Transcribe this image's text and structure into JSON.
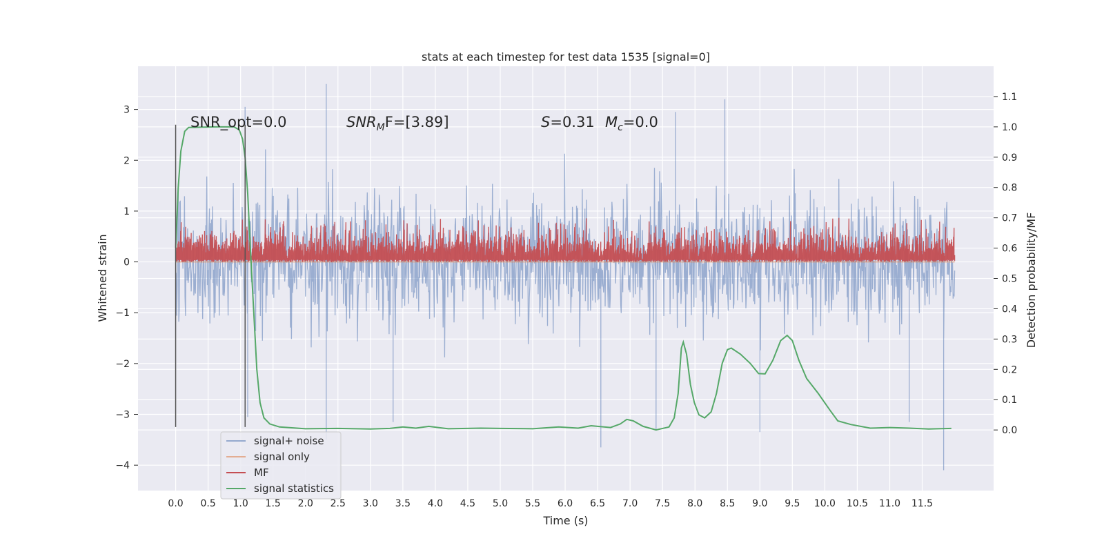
{
  "chart_data": {
    "type": "line",
    "title": "stats at each timestep for test data 1535 [signal=0]",
    "xlabel": "Time (s)",
    "ylabel": "Whitened strain",
    "y2label": "Detection probability/MF",
    "xlim": [
      -0.58,
      12.6
    ],
    "ylim": [
      -4.5,
      3.85
    ],
    "y2lim": [
      -0.2,
      1.2
    ],
    "xticks": [
      "0.0",
      "0.5",
      "1.0",
      "1.5",
      "2.0",
      "2.5",
      "3.0",
      "3.5",
      "4.0",
      "4.5",
      "5.0",
      "5.5",
      "6.0",
      "6.5",
      "7.0",
      "7.5",
      "8.0",
      "8.5",
      "9.0",
      "9.5",
      "10.0",
      "10.5",
      "11.0",
      "11.5"
    ],
    "yticks": [
      "−4",
      "−3",
      "−2",
      "−1",
      "0",
      "1",
      "2",
      "3"
    ],
    "y2ticks": [
      "0.0",
      "0.1",
      "0.2",
      "0.3",
      "0.4",
      "0.5",
      "0.6",
      "0.7",
      "0.8",
      "0.9",
      "1.0",
      "1.1"
    ],
    "grid": true,
    "legend_position": "lower-left",
    "annotations": [
      {
        "text": "SNR_opt=0.0",
        "x": 0.2,
        "y": 2.7
      },
      {
        "prefix": "SNR",
        "sub": "M",
        "suffix": "F=[3.89]",
        "x": 2.6,
        "y": 2.7
      },
      {
        "prefix": "S",
        "suffix": "=0.31",
        "x": 5.6,
        "y": 2.7
      },
      {
        "prefix": "M",
        "sub": "c",
        "suffix": "=0.0",
        "x": 6.6,
        "y": 2.7
      }
    ],
    "window_markers": {
      "x": [
        0.0,
        1.07
      ],
      "ymin": -3.25,
      "ymax": 2.7
    },
    "series": [
      {
        "name": "signal+ noise",
        "color": "#4c72b0",
        "style": "noise",
        "x_range": [
          0.0,
          12.0
        ],
        "typical_abs": 1.45,
        "spikes": [
          {
            "x": 2.32,
            "y": 3.5
          },
          {
            "x": 8.46,
            "y": 3.2
          },
          {
            "x": 1.07,
            "y": 3.05
          },
          {
            "x": 7.7,
            "y": 2.95
          },
          {
            "x": 11.83,
            "y": -4.1
          },
          {
            "x": 6.55,
            "y": -3.65
          },
          {
            "x": 2.32,
            "y": -3.5
          },
          {
            "x": 9.0,
            "y": -3.35
          },
          {
            "x": 3.35,
            "y": -3.15
          },
          {
            "x": 1.11,
            "y": -3.05
          },
          {
            "x": 7.4,
            "y": -3.3
          },
          {
            "x": 11.3,
            "y": -3.15
          }
        ]
      },
      {
        "name": "signal only",
        "color": "#dd8452",
        "style": "flat",
        "x_range": [
          0.0,
          12.0
        ],
        "value": 0.0
      },
      {
        "name": "MF",
        "color": "#c44e52",
        "style": "band",
        "x_range": [
          0.0,
          12.0
        ],
        "low": 0.0,
        "high": 0.88
      },
      {
        "name": "signal statistics",
        "color": "#55a868",
        "style": "line",
        "axis": "right",
        "points": [
          [
            0.0,
            0.6
          ],
          [
            0.04,
            0.8
          ],
          [
            0.08,
            0.92
          ],
          [
            0.14,
            0.985
          ],
          [
            0.2,
            0.998
          ],
          [
            0.6,
            1.0
          ],
          [
            0.9,
            1.0
          ],
          [
            0.98,
            0.99
          ],
          [
            1.03,
            0.96
          ],
          [
            1.07,
            0.9
          ],
          [
            1.11,
            0.78
          ],
          [
            1.15,
            0.6
          ],
          [
            1.2,
            0.4
          ],
          [
            1.25,
            0.2
          ],
          [
            1.3,
            0.09
          ],
          [
            1.36,
            0.04
          ],
          [
            1.45,
            0.02
          ],
          [
            1.6,
            0.01
          ],
          [
            2.0,
            0.004
          ],
          [
            2.5,
            0.005
          ],
          [
            3.0,
            0.003
          ],
          [
            3.3,
            0.005
          ],
          [
            3.5,
            0.01
          ],
          [
            3.7,
            0.006
          ],
          [
            3.9,
            0.012
          ],
          [
            4.2,
            0.004
          ],
          [
            4.7,
            0.006
          ],
          [
            5.0,
            0.005
          ],
          [
            5.5,
            0.004
          ],
          [
            5.9,
            0.01
          ],
          [
            6.2,
            0.006
          ],
          [
            6.4,
            0.014
          ],
          [
            6.7,
            0.008
          ],
          [
            6.85,
            0.02
          ],
          [
            6.95,
            0.035
          ],
          [
            7.05,
            0.03
          ],
          [
            7.2,
            0.012
          ],
          [
            7.4,
            0.0
          ],
          [
            7.6,
            0.01
          ],
          [
            7.68,
            0.04
          ],
          [
            7.74,
            0.12
          ],
          [
            7.79,
            0.27
          ],
          [
            7.82,
            0.29
          ],
          [
            7.87,
            0.25
          ],
          [
            7.93,
            0.15
          ],
          [
            7.99,
            0.09
          ],
          [
            8.06,
            0.05
          ],
          [
            8.15,
            0.04
          ],
          [
            8.25,
            0.06
          ],
          [
            8.33,
            0.12
          ],
          [
            8.42,
            0.22
          ],
          [
            8.5,
            0.265
          ],
          [
            8.56,
            0.27
          ],
          [
            8.7,
            0.25
          ],
          [
            8.85,
            0.22
          ],
          [
            8.98,
            0.186
          ],
          [
            9.08,
            0.185
          ],
          [
            9.2,
            0.23
          ],
          [
            9.32,
            0.295
          ],
          [
            9.42,
            0.312
          ],
          [
            9.5,
            0.295
          ],
          [
            9.6,
            0.23
          ],
          [
            9.72,
            0.17
          ],
          [
            9.9,
            0.12
          ],
          [
            10.08,
            0.065
          ],
          [
            10.2,
            0.03
          ],
          [
            10.4,
            0.018
          ],
          [
            10.7,
            0.006
          ],
          [
            11.0,
            0.008
          ],
          [
            11.3,
            0.006
          ],
          [
            11.6,
            0.003
          ],
          [
            11.95,
            0.005
          ]
        ]
      }
    ]
  }
}
